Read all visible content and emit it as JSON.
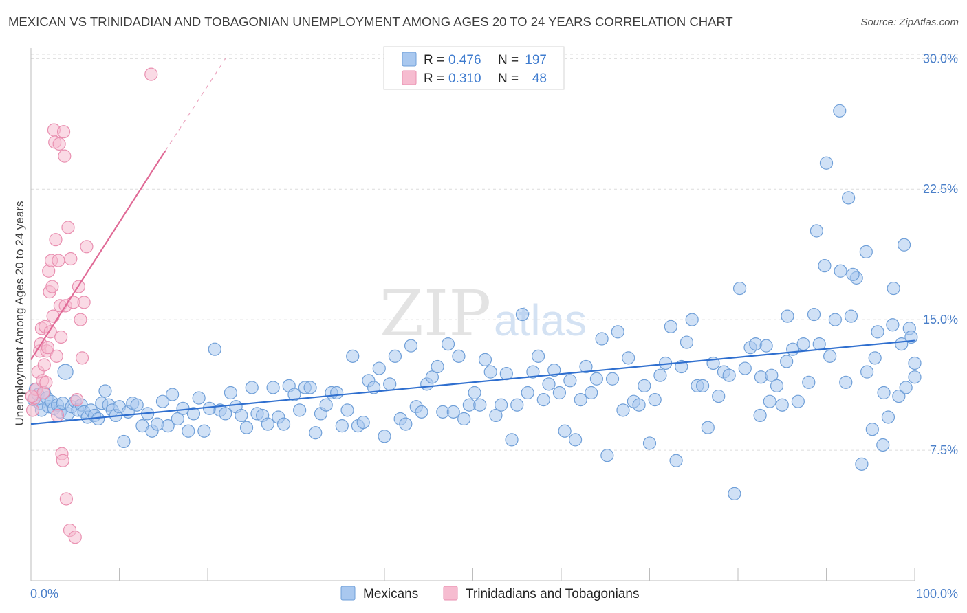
{
  "title": "MEXICAN VS TRINIDADIAN AND TOBAGONIAN UNEMPLOYMENT AMONG AGES 20 TO 24 YEARS CORRELATION CHART",
  "source": "Source: ZipAtlas.com",
  "watermark": {
    "zip": "ZIP",
    "atlas": "atlas"
  },
  "legend": {
    "rows": [
      {
        "name": "Mexicans",
        "r_label": "R =",
        "r_value": "0.476",
        "n_label": "N =",
        "n_value": "197",
        "color": "#a9c8ef",
        "stroke": "#6f9fd8"
      },
      {
        "name": "Trinidadians and Tobagonians",
        "r_label": "R =",
        "r_value": "0.310",
        "n_label": "N =",
        "n_value": "48",
        "color": "#f6bcd0",
        "stroke": "#e98fb0"
      }
    ]
  },
  "chart_data": {
    "type": "scatter",
    "xlabel": "",
    "ylabel": "Unemployment Among Ages 20 to 24 years",
    "xlim": [
      0,
      100
    ],
    "ylim": [
      0,
      31
    ],
    "x_tick_labels": [
      "0.0%",
      "100.0%"
    ],
    "y_ticks": [
      {
        "value": 7.5,
        "label": "7.5%"
      },
      {
        "value": 15.0,
        "label": "15.0%"
      },
      {
        "value": 22.5,
        "label": "22.5%"
      },
      {
        "value": 30.0,
        "label": "30.0%"
      }
    ],
    "series": [
      {
        "name": "Mexicans",
        "color": "#a9c8ef",
        "stroke": "#6f9fd8",
        "line_color": "#2f6fcf",
        "trend": {
          "x": [
            0,
            100
          ],
          "y": [
            9.0,
            13.8
          ]
        },
        "points": [
          [
            0.3,
            10.4
          ],
          [
            0.5,
            11.0
          ],
          [
            0.8,
            10.7
          ],
          [
            1.0,
            10.2
          ],
          [
            1.2,
            9.8
          ],
          [
            1.5,
            10.8
          ],
          [
            1.8,
            10.5
          ],
          [
            2.0,
            10.0
          ],
          [
            2.3,
            10.3
          ],
          [
            2.6,
            9.9
          ],
          [
            3.0,
            10.1
          ],
          [
            3.3,
            9.7
          ],
          [
            3.6,
            10.2
          ],
          [
            3.9,
            12.0
          ],
          [
            4.2,
            9.6
          ],
          [
            4.6,
            10.0
          ],
          [
            5.0,
            10.3
          ],
          [
            5.3,
            9.8
          ],
          [
            5.7,
            10.1
          ],
          [
            6.0,
            9.7
          ],
          [
            6.4,
            9.4
          ],
          [
            6.8,
            9.8
          ],
          [
            7.2,
            9.5
          ],
          [
            7.6,
            9.3
          ],
          [
            8.0,
            10.2
          ],
          [
            8.4,
            10.9
          ],
          [
            8.8,
            10.1
          ],
          [
            9.2,
            9.8
          ],
          [
            9.6,
            9.5
          ],
          [
            10.0,
            10.0
          ],
          [
            10.5,
            8.0
          ],
          [
            11.0,
            9.7
          ],
          [
            11.5,
            10.2
          ],
          [
            12.0,
            10.1
          ],
          [
            12.6,
            8.9
          ],
          [
            13.2,
            9.6
          ],
          [
            13.7,
            8.6
          ],
          [
            14.3,
            9.0
          ],
          [
            14.9,
            10.3
          ],
          [
            15.5,
            8.9
          ],
          [
            16.0,
            10.7
          ],
          [
            16.6,
            9.3
          ],
          [
            17.2,
            9.9
          ],
          [
            17.8,
            8.6
          ],
          [
            18.4,
            9.6
          ],
          [
            19.0,
            10.5
          ],
          [
            19.6,
            8.6
          ],
          [
            20.2,
            9.9
          ],
          [
            20.8,
            13.3
          ],
          [
            21.4,
            9.8
          ],
          [
            22.0,
            9.6
          ],
          [
            22.6,
            10.8
          ],
          [
            23.2,
            10.0
          ],
          [
            23.8,
            9.5
          ],
          [
            24.4,
            8.8
          ],
          [
            25.0,
            11.1
          ],
          [
            25.6,
            9.6
          ],
          [
            26.2,
            9.5
          ],
          [
            26.8,
            9.0
          ],
          [
            27.4,
            11.1
          ],
          [
            28.0,
            9.4
          ],
          [
            28.6,
            9.0
          ],
          [
            29.2,
            11.2
          ],
          [
            29.8,
            10.7
          ],
          [
            30.4,
            9.8
          ],
          [
            31.0,
            11.1
          ],
          [
            31.6,
            11.1
          ],
          [
            32.2,
            8.5
          ],
          [
            32.8,
            9.6
          ],
          [
            33.4,
            10.1
          ],
          [
            34.0,
            10.8
          ],
          [
            34.6,
            10.8
          ],
          [
            35.2,
            8.9
          ],
          [
            35.8,
            9.8
          ],
          [
            36.4,
            12.9
          ],
          [
            37.0,
            8.9
          ],
          [
            37.6,
            9.1
          ],
          [
            38.2,
            11.5
          ],
          [
            38.8,
            11.1
          ],
          [
            39.4,
            12.2
          ],
          [
            40.0,
            8.3
          ],
          [
            40.6,
            11.3
          ],
          [
            41.2,
            12.9
          ],
          [
            41.8,
            9.3
          ],
          [
            42.4,
            9.0
          ],
          [
            43.0,
            13.5
          ],
          [
            43.6,
            10.0
          ],
          [
            44.2,
            9.7
          ],
          [
            44.8,
            11.3
          ],
          [
            45.4,
            11.7
          ],
          [
            46.0,
            12.3
          ],
          [
            46.6,
            9.7
          ],
          [
            47.2,
            13.6
          ],
          [
            47.8,
            9.7
          ],
          [
            48.4,
            12.9
          ],
          [
            49.0,
            9.3
          ],
          [
            49.6,
            10.1
          ],
          [
            50.2,
            10.8
          ],
          [
            50.8,
            10.1
          ],
          [
            51.4,
            12.7
          ],
          [
            52.0,
            12.0
          ],
          [
            52.6,
            9.5
          ],
          [
            53.2,
            10.1
          ],
          [
            53.8,
            11.9
          ],
          [
            54.4,
            8.1
          ],
          [
            55.0,
            10.1
          ],
          [
            55.6,
            15.3
          ],
          [
            56.2,
            10.8
          ],
          [
            56.8,
            12.0
          ],
          [
            57.4,
            12.9
          ],
          [
            58.0,
            10.4
          ],
          [
            58.6,
            11.3
          ],
          [
            59.2,
            12.1
          ],
          [
            59.8,
            10.8
          ],
          [
            60.4,
            8.6
          ],
          [
            61.0,
            11.5
          ],
          [
            61.6,
            8.1
          ],
          [
            62.2,
            10.4
          ],
          [
            62.8,
            12.3
          ],
          [
            63.4,
            10.8
          ],
          [
            64.0,
            11.6
          ],
          [
            64.6,
            13.9
          ],
          [
            65.2,
            7.2
          ],
          [
            65.8,
            11.6
          ],
          [
            66.4,
            14.3
          ],
          [
            67.0,
            9.8
          ],
          [
            67.6,
            12.8
          ],
          [
            68.2,
            10.3
          ],
          [
            68.8,
            10.1
          ],
          [
            69.4,
            11.2
          ],
          [
            70.0,
            7.9
          ],
          [
            70.6,
            10.4
          ],
          [
            71.2,
            11.8
          ],
          [
            71.8,
            12.5
          ],
          [
            72.4,
            14.6
          ],
          [
            73.0,
            6.9
          ],
          [
            73.6,
            12.3
          ],
          [
            74.2,
            13.7
          ],
          [
            74.8,
            15.0
          ],
          [
            75.4,
            11.2
          ],
          [
            76.0,
            11.2
          ],
          [
            76.6,
            8.8
          ],
          [
            77.2,
            12.5
          ],
          [
            77.8,
            10.6
          ],
          [
            78.4,
            12.0
          ],
          [
            79.0,
            11.8
          ],
          [
            79.6,
            5.0
          ],
          [
            80.2,
            16.8
          ],
          [
            80.8,
            12.2
          ],
          [
            81.4,
            13.4
          ],
          [
            82.0,
            13.6
          ],
          [
            82.6,
            11.7
          ],
          [
            83.2,
            13.5
          ],
          [
            83.8,
            11.8
          ],
          [
            84.4,
            11.2
          ],
          [
            85.0,
            10.1
          ],
          [
            85.6,
            15.2
          ],
          [
            86.2,
            13.3
          ],
          [
            86.8,
            10.3
          ],
          [
            87.4,
            13.6
          ],
          [
            88.0,
            11.4
          ],
          [
            88.6,
            15.3
          ],
          [
            89.2,
            13.6
          ],
          [
            89.8,
            18.1
          ],
          [
            90.4,
            12.9
          ],
          [
            91.0,
            15.0
          ],
          [
            91.6,
            17.8
          ],
          [
            92.2,
            11.4
          ],
          [
            92.8,
            15.2
          ],
          [
            93.4,
            17.4
          ],
          [
            94.0,
            6.7
          ],
          [
            94.6,
            12.0
          ],
          [
            95.2,
            8.7
          ],
          [
            95.8,
            14.3
          ],
          [
            96.4,
            7.8
          ],
          [
            97.0,
            9.4
          ],
          [
            97.6,
            16.8
          ],
          [
            98.2,
            10.6
          ],
          [
            98.8,
            19.3
          ],
          [
            99.4,
            14.5
          ],
          [
            100.0,
            11.7
          ],
          [
            85.5,
            12.6
          ],
          [
            88.9,
            20.1
          ],
          [
            90.0,
            24.0
          ],
          [
            91.5,
            27.0
          ],
          [
            92.5,
            22.0
          ],
          [
            93.0,
            17.6
          ],
          [
            94.5,
            18.9
          ],
          [
            95.5,
            12.8
          ],
          [
            96.5,
            10.8
          ],
          [
            97.5,
            14.7
          ],
          [
            98.5,
            13.6
          ],
          [
            99.0,
            11.1
          ],
          [
            99.6,
            14.0
          ],
          [
            100.0,
            12.5
          ],
          [
            82.5,
            9.5
          ],
          [
            83.6,
            10.3
          ]
        ]
      },
      {
        "name": "Trinidadians and Tobagonians",
        "color": "#f6bcd0",
        "stroke": "#e98fb0",
        "line_color": "#e06a96",
        "trend": {
          "x": [
            0,
            15.2
          ],
          "y": [
            12.7,
            24.7
          ]
        },
        "trend_extension": {
          "x": [
            15.2,
            22.0
          ],
          "y": [
            24.7,
            30.0
          ]
        },
        "points": [
          [
            0.2,
            9.8
          ],
          [
            0.4,
            10.5
          ],
          [
            0.6,
            11.0
          ],
          [
            0.8,
            12.0
          ],
          [
            1.0,
            13.2
          ],
          [
            1.1,
            13.6
          ],
          [
            1.2,
            14.5
          ],
          [
            1.3,
            11.5
          ],
          [
            1.4,
            10.8
          ],
          [
            1.5,
            12.4
          ],
          [
            1.6,
            14.6
          ],
          [
            1.7,
            11.4
          ],
          [
            1.8,
            13.2
          ],
          [
            1.9,
            13.4
          ],
          [
            2.0,
            17.8
          ],
          [
            2.1,
            16.6
          ],
          [
            2.2,
            14.3
          ],
          [
            2.3,
            18.4
          ],
          [
            2.4,
            16.9
          ],
          [
            2.5,
            15.2
          ],
          [
            2.6,
            25.9
          ],
          [
            2.7,
            25.2
          ],
          [
            2.8,
            19.6
          ],
          [
            2.9,
            12.9
          ],
          [
            3.0,
            9.5
          ],
          [
            3.1,
            18.4
          ],
          [
            3.2,
            25.1
          ],
          [
            3.3,
            15.8
          ],
          [
            3.4,
            14.0
          ],
          [
            3.5,
            7.3
          ],
          [
            3.6,
            6.9
          ],
          [
            3.7,
            25.8
          ],
          [
            3.8,
            24.4
          ],
          [
            3.9,
            15.8
          ],
          [
            4.0,
            4.7
          ],
          [
            4.2,
            20.3
          ],
          [
            4.4,
            2.9
          ],
          [
            4.5,
            18.5
          ],
          [
            4.8,
            16.0
          ],
          [
            5.0,
            2.5
          ],
          [
            5.2,
            10.4
          ],
          [
            5.4,
            16.9
          ],
          [
            5.6,
            15.0
          ],
          [
            5.8,
            12.8
          ],
          [
            6.0,
            16.0
          ],
          [
            6.3,
            19.2
          ],
          [
            13.6,
            29.1
          ],
          [
            0.1,
            10.6
          ]
        ]
      }
    ]
  },
  "bottom_legend": [
    "Mexicans",
    "Trinidadians and Tobagonians"
  ]
}
